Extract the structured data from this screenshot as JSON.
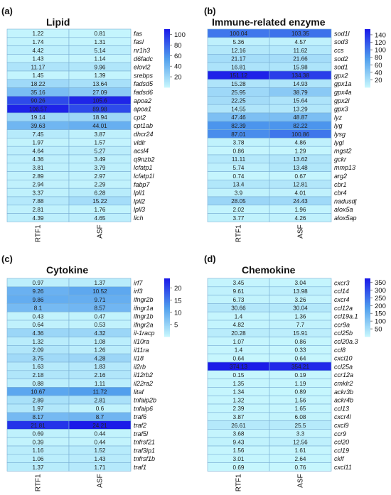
{
  "chart_data": [
    {
      "type": "heatmap",
      "panel_label": "(a)",
      "title": "Lipid",
      "columns": [
        "RTF1",
        "ASF"
      ],
      "rows": [
        "fas",
        "fasl",
        "nr1h3",
        "d6fadc",
        "elovl2",
        "srebps",
        "fadsd5",
        "fadsd6",
        "apoa2",
        "apoa1",
        "cpt2",
        "cpt1ab",
        "dhcr24",
        "vldlr",
        "acsl4",
        "q9nzb2",
        "lcfatp1",
        "lcfatp1l",
        "fabp7",
        "lpll1",
        "lpll2",
        "lpll3",
        "lich"
      ],
      "values": [
        [
          1.22,
          0.81
        ],
        [
          1.74,
          1.31
        ],
        [
          4.42,
          5.14
        ],
        [
          1.43,
          1.14
        ],
        [
          11.17,
          9.96
        ],
        [
          1.45,
          1.39
        ],
        [
          18.22,
          13.64
        ],
        [
          35.16,
          27.09
        ],
        [
          90.26,
          105.6
        ],
        [
          106.57,
          89.98
        ],
        [
          19.14,
          18.94
        ],
        [
          39.63,
          44.01
        ],
        [
          7.45,
          3.87
        ],
        [
          1.97,
          1.57
        ],
        [
          4.64,
          5.27
        ],
        [
          4.36,
          3.49
        ],
        [
          3.81,
          3.79
        ],
        [
          2.89,
          2.97
        ],
        [
          2.94,
          2.29
        ],
        [
          3.37,
          6.28
        ],
        [
          7.88,
          15.22
        ],
        [
          2.81,
          1.76
        ],
        [
          4.39,
          4.65
        ]
      ],
      "labels": [
        [
          "1.22",
          "0.81"
        ],
        [
          "1.74",
          "1.31"
        ],
        [
          "4.42",
          "5.14"
        ],
        [
          "1.43",
          "1.14"
        ],
        [
          "11.17",
          "9.96"
        ],
        [
          "1.45",
          "1.39"
        ],
        [
          "18.22",
          "13.64"
        ],
        [
          "35.16",
          "27.09"
        ],
        [
          "90.26",
          "105.6"
        ],
        [
          "106.57",
          "89.98"
        ],
        [
          "19.14",
          "18.94"
        ],
        [
          "39.63",
          "44.01"
        ],
        [
          "7.45",
          "3.87"
        ],
        [
          "1.97",
          "1.57"
        ],
        [
          "4.64",
          "5.27"
        ],
        [
          "4.36",
          "3.49"
        ],
        [
          "3.81",
          "3.79"
        ],
        [
          "2.89",
          "2.97"
        ],
        [
          "2.94",
          "2.29"
        ],
        [
          "3.37",
          "6.28"
        ],
        [
          "7.88",
          "15.22"
        ],
        [
          "2.81",
          "1.76"
        ],
        [
          "4.39",
          "4.65"
        ]
      ],
      "colorbar": {
        "min": 0,
        "max": 110,
        "ticks": [
          20,
          40,
          60,
          80,
          100
        ]
      }
    },
    {
      "type": "heatmap",
      "panel_label": "(b)",
      "title": "Immune-related enzyme",
      "columns": [
        "RTF1",
        "ASF"
      ],
      "rows": [
        "sod1l",
        "sod3",
        "ccs",
        "sod2",
        "sod1",
        "gpx2",
        "gpx1a",
        "gpx4a",
        "gpx2l",
        "gpx3",
        "lyz",
        "lyg",
        "lysg",
        "lygl",
        "mgst2",
        "gckr",
        "mmp13",
        "arg2",
        "cbr1",
        "cbr4",
        "nadusdj",
        "alox5a",
        "alox5ap"
      ],
      "values": [
        [
          100.04,
          103.35
        ],
        [
          5.36,
          4.57
        ],
        [
          12.16,
          11.62
        ],
        [
          21.17,
          21.66
        ],
        [
          16.81,
          15.98
        ],
        [
          151.12,
          134.38
        ],
        [
          15.28,
          14.93
        ],
        [
          25.95,
          38.79
        ],
        [
          22.25,
          15.64
        ],
        [
          14.55,
          13.29
        ],
        [
          47.46,
          48.87
        ],
        [
          82.39,
          82.22
        ],
        [
          87.01,
          100.86
        ],
        [
          3.78,
          4.86
        ],
        [
          0.86,
          1.29
        ],
        [
          11.11,
          13.62
        ],
        [
          5.74,
          13.48
        ],
        [
          0.74,
          0.67
        ],
        [
          13.4,
          12.81
        ],
        [
          3.9,
          4.01
        ],
        [
          28.05,
          24.43
        ],
        [
          2.02,
          1.96
        ],
        [
          3.77,
          4.26
        ]
      ],
      "labels": [
        [
          "100.04",
          "103.35"
        ],
        [
          "5.36",
          "4.57"
        ],
        [
          "12.16",
          "11.62"
        ],
        [
          "21.17",
          "21.66"
        ],
        [
          "16.81",
          "15.98"
        ],
        [
          "151.12",
          "134.38"
        ],
        [
          "15.28",
          "14.93"
        ],
        [
          "25.95",
          "38.79"
        ],
        [
          "22.25",
          "15.64"
        ],
        [
          "14.55",
          "13.29"
        ],
        [
          "47.46",
          "48.87"
        ],
        [
          "82.39",
          "82.22"
        ],
        [
          "87.01",
          "100.86"
        ],
        [
          "3.78",
          "4.86"
        ],
        [
          "0.86",
          "1.29"
        ],
        [
          "11.11",
          "13.62"
        ],
        [
          "5.74",
          "13.48"
        ],
        [
          "0.74",
          "0.67"
        ],
        [
          "13.4",
          "12.81"
        ],
        [
          "3.9",
          "4.01"
        ],
        [
          "28.05",
          "24.43"
        ],
        [
          "2.02",
          "1.96"
        ],
        [
          "3.77",
          "4.26"
        ]
      ],
      "colorbar": {
        "min": 0,
        "max": 155,
        "ticks": [
          20,
          40,
          60,
          80,
          100,
          120,
          140
        ]
      }
    },
    {
      "type": "heatmap",
      "panel_label": "(c)",
      "title": "Cytokine",
      "columns": [
        "RTF1",
        "ASF"
      ],
      "rows": [
        "irf7",
        "irf3",
        "ifngr2b",
        "ifngr1a",
        "ifngr1b",
        "ifngr2a",
        "il-1racp",
        "il10ra",
        "il11ra",
        "il18",
        "il2rb",
        "il12rb2",
        "il22ra2",
        "litaf",
        "tnfaip2b",
        "tnfaip6",
        "traf6",
        "traf2",
        "traf5l",
        "tnfrsf21",
        "traf3ip1",
        "tnfrsf1b",
        "traf1"
      ],
      "values": [
        [
          0.97,
          1.37
        ],
        [
          9.26,
          10.52
        ],
        [
          9.86,
          9.71
        ],
        [
          8.1,
          8.57
        ],
        [
          0.43,
          0.47
        ],
        [
          0.64,
          0.53
        ],
        [
          4.36,
          4.32
        ],
        [
          1.32,
          1.08
        ],
        [
          2.09,
          1.26
        ],
        [
          3.75,
          4.28
        ],
        [
          1.63,
          1.83
        ],
        [
          2.18,
          2.16
        ],
        [
          0.88,
          1.11
        ],
        [
          10.67,
          11.72
        ],
        [
          2.89,
          2.81
        ],
        [
          1.97,
          0.6
        ],
        [
          8.17,
          8.7
        ],
        [
          21.81,
          24.21
        ],
        [
          0.69,
          0.44
        ],
        [
          0.39,
          0.44
        ],
        [
          1.16,
          1.52
        ],
        [
          1.06,
          1.43
        ],
        [
          1.37,
          1.71
        ]
      ],
      "labels": [
        [
          "0.97",
          "1.37"
        ],
        [
          "9.26",
          "10.52"
        ],
        [
          "9.86",
          "9.71"
        ],
        [
          "8.1",
          "8.57"
        ],
        [
          "0.43",
          "0.47"
        ],
        [
          "0.64",
          "0.53"
        ],
        [
          "4.36",
          "4.32"
        ],
        [
          "1.32",
          "1.08"
        ],
        [
          "2.09",
          "1.26"
        ],
        [
          "3.75",
          "4.28"
        ],
        [
          "1.63",
          "1.83"
        ],
        [
          "2.18",
          "2.16"
        ],
        [
          "0.88",
          "1.11"
        ],
        [
          "10.67",
          "11.72"
        ],
        [
          "2.89",
          "2.81"
        ],
        [
          "1.97",
          "0.6"
        ],
        [
          "8.17",
          "8.7"
        ],
        [
          "21.81",
          "24.21"
        ],
        [
          "0.69",
          "0.44"
        ],
        [
          "0.39",
          "0.44"
        ],
        [
          "1.16",
          "1.52"
        ],
        [
          "1.06",
          "1.43"
        ],
        [
          "1.37",
          "1.71"
        ]
      ],
      "colorbar": {
        "min": 0,
        "max": 24,
        "ticks": [
          5,
          10,
          15,
          20
        ]
      }
    },
    {
      "type": "heatmap",
      "panel_label": "(d)",
      "title": "Chemokine",
      "columns": [
        "RTF1",
        "ASF"
      ],
      "rows": [
        "cxcr3",
        "ccl14",
        "cxcr4",
        "ccl12a",
        "ccl19a.1",
        "ccr9a",
        "ccl25b",
        "ccl20a.3",
        "ccl8",
        "cxcl10",
        "ccl25a",
        "ccr12a",
        "cmklr2",
        "ackr3b",
        "ackr4b",
        "ccl13",
        "cxcr4l",
        "cxcl9",
        "ccr9",
        "ccl20",
        "ccl19",
        "cklf",
        "cxcl11"
      ],
      "values": [
        [
          3.45,
          3.04
        ],
        [
          9.61,
          13.98
        ],
        [
          6.73,
          3.26
        ],
        [
          30.66,
          30.04
        ],
        [
          1.4,
          1.36
        ],
        [
          4.82,
          7.7
        ],
        [
          20.28,
          15.91
        ],
        [
          1.07,
          0.86
        ],
        [
          1.4,
          0.33
        ],
        [
          0.64,
          0.64
        ],
        [
          374.13,
          354.21
        ],
        [
          0.15,
          0.19
        ],
        [
          1.35,
          1.19
        ],
        [
          1.34,
          0.89
        ],
        [
          1.32,
          1.56
        ],
        [
          2.39,
          1.65
        ],
        [
          3.87,
          6.08
        ],
        [
          26.61,
          25.5
        ],
        [
          3.68,
          3.3
        ],
        [
          9.43,
          12.56
        ],
        [
          1.56,
          1.61
        ],
        [
          3.01,
          2.64
        ],
        [
          0.69,
          0.76
        ]
      ],
      "labels": [
        [
          "3.45",
          "3.04"
        ],
        [
          "9.61",
          "13.98"
        ],
        [
          "6.73",
          "3.26"
        ],
        [
          "30.66",
          "30.04"
        ],
        [
          "1.4",
          "1.36"
        ],
        [
          "4.82",
          "7.7"
        ],
        [
          "20.28",
          "15.91"
        ],
        [
          "1.07",
          "0.86"
        ],
        [
          "1.4",
          "0.33"
        ],
        [
          "0.64",
          "0.64"
        ],
        [
          "374.13",
          "354.21"
        ],
        [
          "0.15",
          "0.19"
        ],
        [
          "1.35",
          "1.19"
        ],
        [
          "1.34",
          "0.89"
        ],
        [
          "1.32",
          "1.56"
        ],
        [
          "2.39",
          "1.65"
        ],
        [
          "3.87",
          "6.08"
        ],
        [
          "26.61",
          "25.5"
        ],
        [
          "3.68",
          "3.3"
        ],
        [
          "9.43",
          "12.56"
        ],
        [
          "1.56",
          "1.61"
        ],
        [
          "3.01",
          "2.64"
        ],
        [
          "0.69",
          "0.76"
        ]
      ],
      "colorbar": {
        "min": 0,
        "max": 375,
        "ticks": [
          50,
          100,
          150,
          200,
          250,
          300,
          350
        ]
      }
    }
  ],
  "colors": {
    "low": "#c6f6fd",
    "mid": "#4f9ded",
    "high": "#1b1be8",
    "border": "#7ab0d6",
    "text": "#222222"
  }
}
